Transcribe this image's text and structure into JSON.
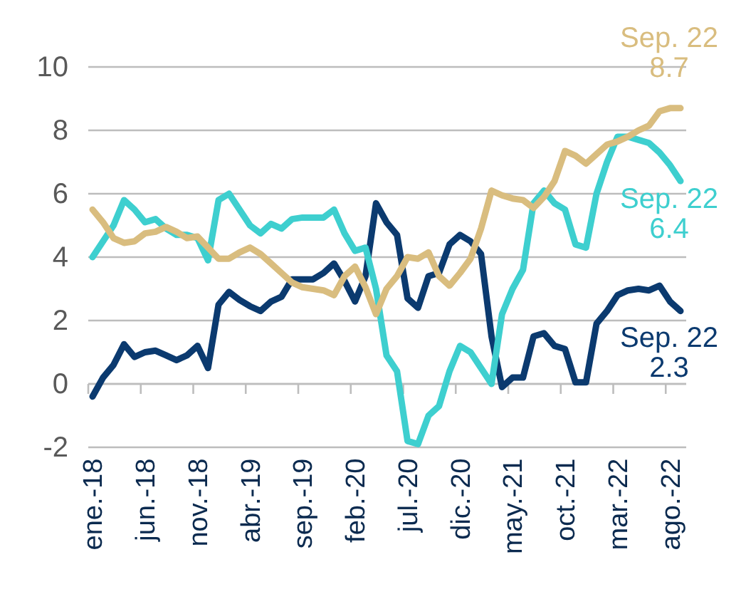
{
  "chart_data": {
    "type": "line",
    "categories": [
      "ene.-18",
      null,
      null,
      null,
      null,
      "jun.-18",
      null,
      null,
      null,
      null,
      "nov.-18",
      null,
      null,
      null,
      null,
      "abr.-19",
      null,
      null,
      null,
      null,
      "sep.-19",
      null,
      null,
      null,
      null,
      "feb.-20",
      null,
      null,
      null,
      null,
      "jul.-20",
      null,
      null,
      null,
      null,
      "dic.-20",
      null,
      null,
      null,
      null,
      "may.-21",
      null,
      null,
      null,
      null,
      "oct.-21",
      null,
      null,
      null,
      null,
      "mar.-22",
      null,
      null,
      null,
      null,
      "ago.-22",
      null
    ],
    "series": [
      {
        "color": "#0b3a6f",
        "values": [
          -0.4,
          0.2,
          0.6,
          1.25,
          0.85,
          1.0,
          1.05,
          0.9,
          0.75,
          0.9,
          1.2,
          0.5,
          2.5,
          2.9,
          2.65,
          2.45,
          2.3,
          2.6,
          2.75,
          3.3,
          3.3,
          3.3,
          3.5,
          3.8,
          3.25,
          2.6,
          3.4,
          5.7,
          5.1,
          4.7,
          2.7,
          2.4,
          3.4,
          3.5,
          4.4,
          4.7,
          4.5,
          4.1,
          1.5,
          -0.1,
          0.2,
          0.2,
          1.5,
          1.6,
          1.2,
          1.1,
          0.05,
          0.05,
          1.9,
          2.3,
          2.8,
          2.95,
          3.0,
          2.95,
          3.1,
          2.6,
          2.3
        ]
      },
      {
        "color": "#3ecfcf",
        "values": [
          4.0,
          4.5,
          5.0,
          5.8,
          5.5,
          5.1,
          5.2,
          4.9,
          4.7,
          4.7,
          4.6,
          3.9,
          5.8,
          6.0,
          5.5,
          5.0,
          4.75,
          5.05,
          4.9,
          5.2,
          5.25,
          5.25,
          5.25,
          5.5,
          4.75,
          4.2,
          4.3,
          3.0,
          0.9,
          0.4,
          -1.8,
          -1.9,
          -1.0,
          -0.7,
          0.4,
          1.2,
          1.0,
          0.5,
          0.0,
          2.2,
          3.0,
          3.6,
          5.7,
          6.1,
          5.7,
          5.5,
          4.4,
          4.3,
          6.0,
          7.0,
          7.8,
          7.8,
          7.7,
          7.6,
          7.3,
          6.9,
          6.4
        ]
      },
      {
        "color": "#d9bd7f",
        "values": [
          5.5,
          5.1,
          4.6,
          4.45,
          4.5,
          4.75,
          4.8,
          4.95,
          4.8,
          4.6,
          4.65,
          4.3,
          3.95,
          3.95,
          4.15,
          4.3,
          4.1,
          3.8,
          3.5,
          3.2,
          3.05,
          3.0,
          2.95,
          2.8,
          3.4,
          3.7,
          3.05,
          2.2,
          3.0,
          3.4,
          4.0,
          3.95,
          4.15,
          3.4,
          3.1,
          3.5,
          3.95,
          4.9,
          6.1,
          5.95,
          5.85,
          5.8,
          5.55,
          5.9,
          6.4,
          7.35,
          7.2,
          6.95,
          7.25,
          7.55,
          7.65,
          7.8,
          8.0,
          8.15,
          8.6,
          8.7,
          8.7
        ]
      }
    ],
    "ylim": [
      -2,
      10
    ],
    "yticks": [
      -2,
      0,
      2,
      4,
      6,
      8,
      10
    ],
    "grid": "y",
    "line_style": "solid",
    "marker": "none",
    "annotations": [
      "Sep. 22\n2.3",
      "Sep. 22\n6.4",
      "Sep. 22\n8.7"
    ]
  }
}
